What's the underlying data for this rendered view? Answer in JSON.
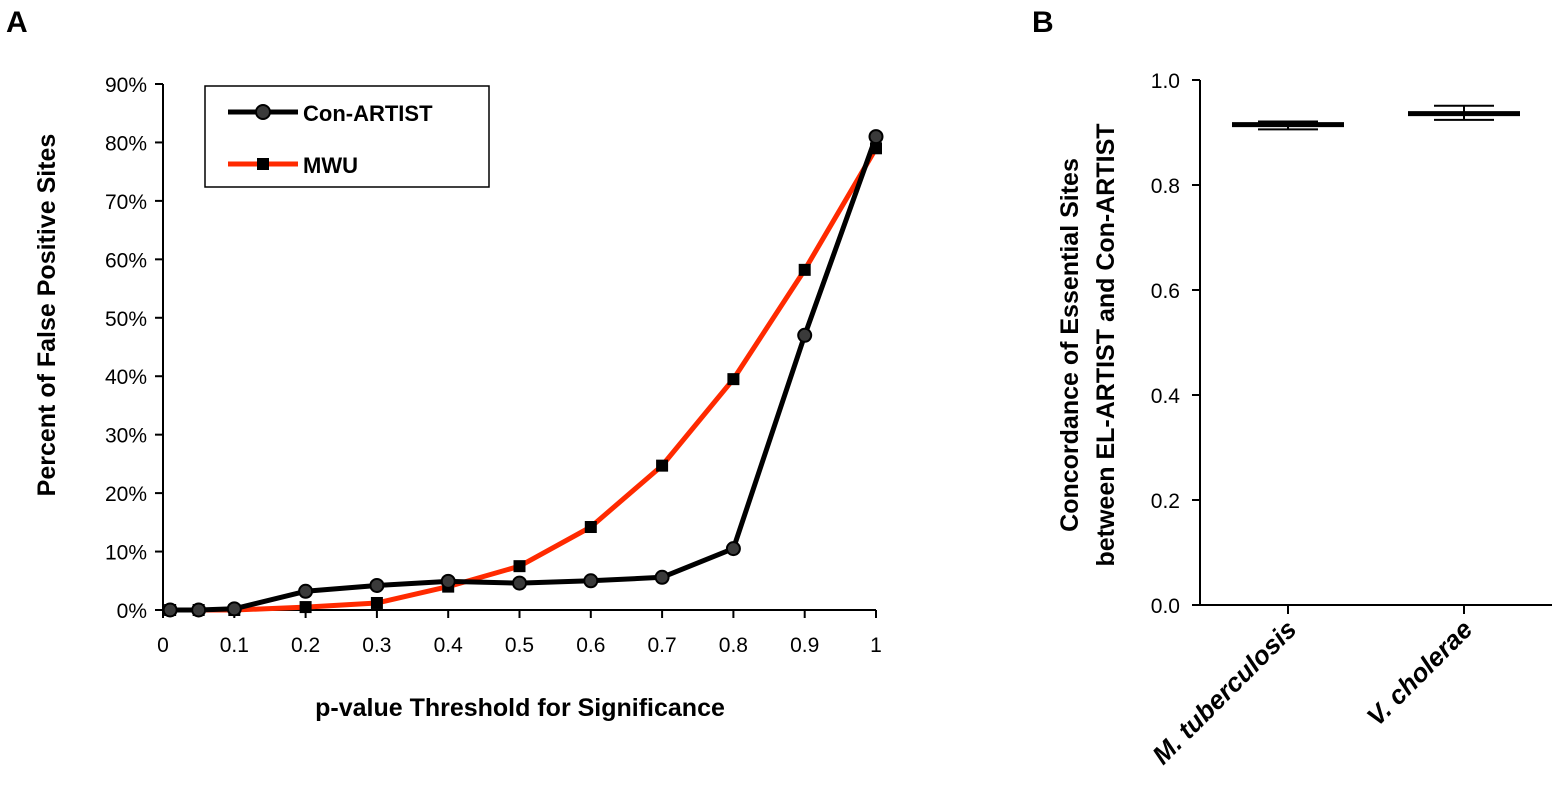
{
  "panels": {
    "a_letter": "A",
    "b_letter": "B"
  },
  "colors": {
    "con_artist": "#000000",
    "con_artist_marker": "#3a3a3a",
    "mwu": "#ff2a00",
    "mwu_marker": "#000000"
  },
  "chart_data": [
    {
      "panel": "A",
      "type": "line",
      "x": [
        0.01,
        0.05,
        0.1,
        0.2,
        0.3,
        0.4,
        0.5,
        0.6,
        0.7,
        0.8,
        0.9,
        1.0
      ],
      "series": [
        {
          "name": "Con-ARTIST",
          "marker": "circle",
          "values": [
            0.0,
            0.0,
            0.2,
            3.2,
            4.2,
            4.9,
            4.6,
            5.0,
            5.6,
            10.5,
            47.0,
            81.0
          ]
        },
        {
          "name": "MWU",
          "marker": "square",
          "values": [
            0.0,
            0.0,
            0.0,
            0.5,
            1.2,
            4.0,
            7.5,
            14.2,
            24.7,
            39.5,
            58.2,
            79.0
          ]
        }
      ],
      "xlabel": "p-value Threshold for Significance",
      "ylabel": "Percent of False Positive Sites",
      "xlim": [
        0,
        1
      ],
      "ylim": [
        0,
        90
      ],
      "xticks": [
        "0",
        "0.1",
        "0.2",
        "0.3",
        "0.4",
        "0.5",
        "0.6",
        "0.7",
        "0.8",
        "0.9",
        "1"
      ],
      "yticks": [
        "0%",
        "10%",
        "20%",
        "30%",
        "40%",
        "50%",
        "60%",
        "70%",
        "80%",
        "90%"
      ],
      "legend_position": "top-left",
      "grid": false
    },
    {
      "panel": "B",
      "type": "scatter",
      "categories": [
        "M. tuberculosis",
        "V. cholerae"
      ],
      "values": [
        0.915,
        0.936
      ],
      "error_low": [
        0.906,
        0.924
      ],
      "error_high": [
        0.921,
        0.951
      ],
      "ylabel_line1": "Concordance of Essential Sites",
      "ylabel_line2": "between EL-ARTIST and Con-ARTIST",
      "ylim": [
        0.0,
        1.0
      ],
      "yticks": [
        "0.0",
        "0.2",
        "0.4",
        "0.6",
        "0.8",
        "1.0"
      ],
      "grid": false
    }
  ]
}
